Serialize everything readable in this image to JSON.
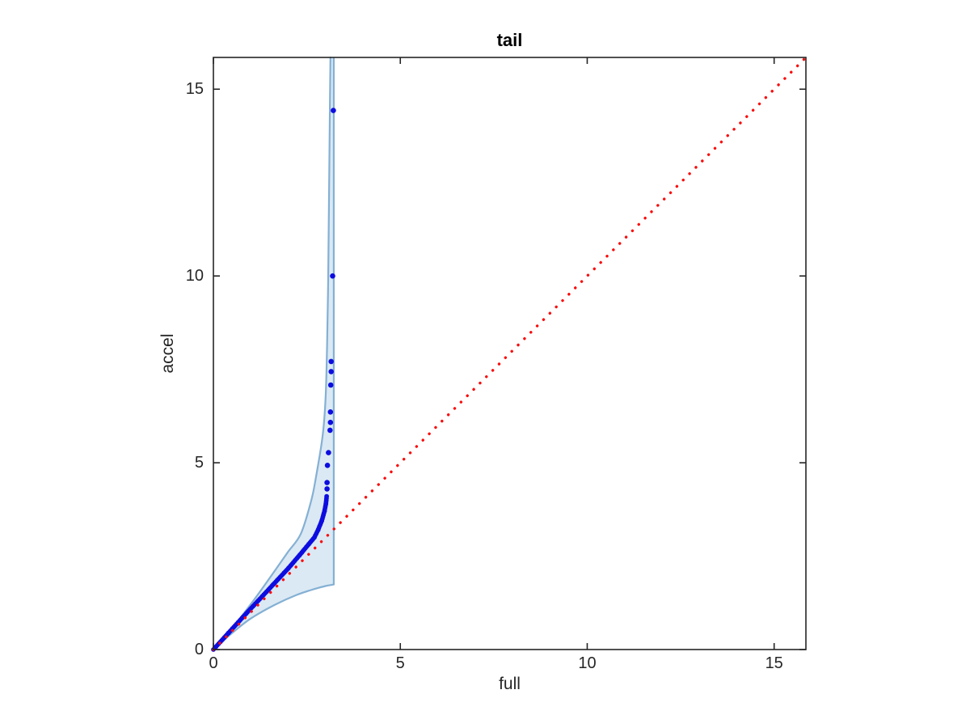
{
  "figure": {
    "background": "#ffffff",
    "axis_color": "#262626"
  },
  "chart_data": {
    "type": "scatter",
    "title": "tail",
    "xlabel": "full",
    "ylabel": "accel",
    "xlim": [
      0,
      15.85
    ],
    "ylim": [
      0,
      15.85
    ],
    "xticks": [
      0,
      5,
      10,
      15
    ],
    "yticks": [
      0,
      5,
      10,
      15
    ],
    "grid": false,
    "legend": "none",
    "box": true,
    "tick_direction": "in",
    "reference_line": {
      "description": "identity line y = x",
      "style": "dotted",
      "color": "#f80d0d",
      "from": [
        0,
        0
      ],
      "to": [
        15.85,
        15.85
      ]
    },
    "envelope": {
      "description": "confidence band around QQ curve, closed by vertical edge at max full-quantile",
      "fill_color": "#dbe9f4",
      "edge_color": "#84b0d4",
      "lower_edge": [
        [
          0,
          0
        ],
        [
          0.5,
          0.44
        ],
        [
          1.0,
          0.83
        ],
        [
          1.63,
          1.19
        ],
        [
          2.2,
          1.45
        ],
        [
          2.7,
          1.62
        ],
        [
          3.0,
          1.7
        ],
        [
          3.22,
          1.74
        ]
      ],
      "upper_edge": [
        [
          0,
          0
        ],
        [
          0.55,
          0.63
        ],
        [
          1.1,
          1.35
        ],
        [
          1.65,
          2.12
        ],
        [
          2.0,
          2.62
        ],
        [
          2.34,
          3.1
        ],
        [
          2.61,
          3.96
        ],
        [
          2.73,
          4.54
        ],
        [
          2.92,
          5.7
        ],
        [
          3.0,
          6.7
        ],
        [
          3.04,
          8.1
        ],
        [
          3.07,
          9.9
        ],
        [
          3.09,
          11.8
        ],
        [
          3.11,
          13.8
        ],
        [
          3.13,
          15.85
        ]
      ],
      "right_edge_x": 3.22,
      "right_edge_y_range": [
        1.74,
        15.85
      ]
    },
    "qq_points": {
      "description": "quantile-quantile points (full vs accel); dense_chain is the tightly overlapping run of dots, outliers are the isolated upper-tail dots",
      "color": "#0d0de0",
      "dense_chain": [
        [
          0,
          0
        ],
        [
          0.4,
          0.44
        ],
        [
          0.8,
          0.88
        ],
        [
          1.2,
          1.31
        ],
        [
          1.6,
          1.74
        ],
        [
          2.0,
          2.17
        ],
        [
          2.3,
          2.52
        ],
        [
          2.55,
          2.82
        ],
        [
          2.7,
          3.0
        ],
        [
          2.8,
          3.2
        ],
        [
          2.9,
          3.45
        ],
        [
          2.97,
          3.7
        ],
        [
          3.01,
          3.9
        ],
        [
          3.03,
          4.1
        ]
      ],
      "outliers": [
        [
          3.04,
          4.3
        ],
        [
          3.04,
          4.47
        ],
        [
          3.05,
          4.93
        ],
        [
          3.08,
          5.27
        ],
        [
          3.12,
          5.87
        ],
        [
          3.13,
          6.08
        ],
        [
          3.13,
          6.36
        ],
        [
          3.14,
          7.08
        ],
        [
          3.15,
          7.44
        ],
        [
          3.15,
          7.71
        ],
        [
          3.19,
          10.0
        ],
        [
          3.21,
          14.43
        ]
      ]
    }
  }
}
